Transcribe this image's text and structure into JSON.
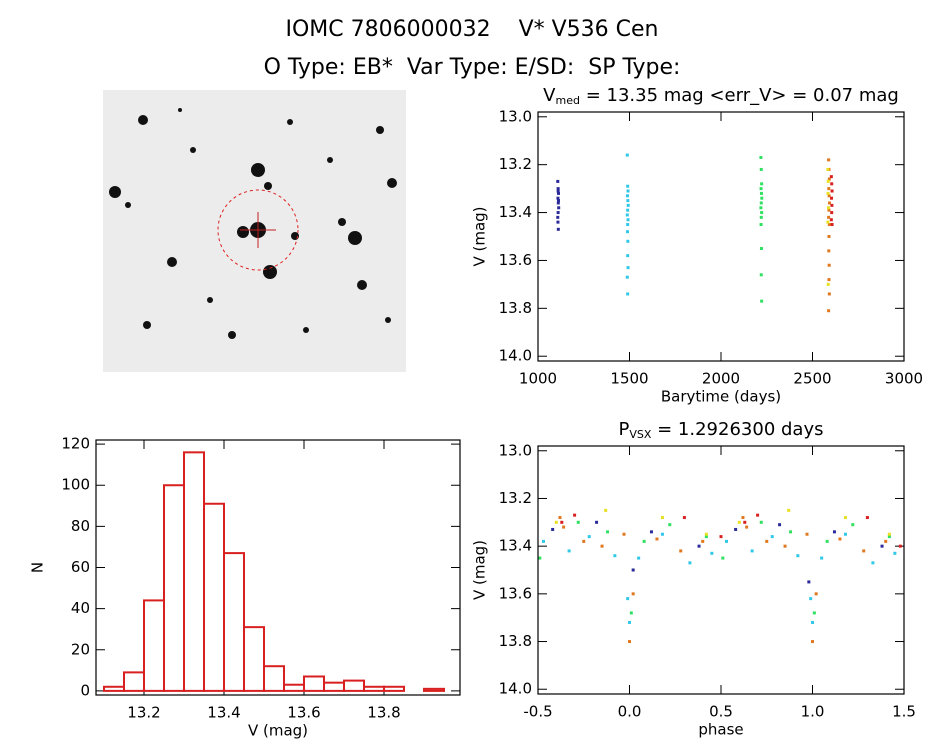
{
  "header": {
    "title": "IOMC 7806000032    V* V536 Cen",
    "subtitle": "O Type: EB*  Var Type: E/SD:  SP Type:"
  },
  "chart_data": [
    {
      "type": "scatter",
      "title": "V",
      "title_sub": "med",
      "title_rest": " = 13.35 mag <err_V> = 0.07 mag",
      "x_label": "Barytime (days)",
      "y_label": "V (mag)",
      "xlim": [
        1000,
        3000
      ],
      "xticks": [
        1000,
        1500,
        2000,
        2500,
        3000
      ],
      "ylim": [
        14.02,
        12.98
      ],
      "yticks": [
        {
          "value": 13,
          "label": "13.0"
        },
        13.2,
        13.4,
        13.6,
        13.8,
        {
          "value": 14,
          "label": "14.0"
        }
      ],
      "series": [
        {
          "color": "#2a2a9a",
          "x": [
            1108,
            1110,
            1112,
            1109,
            1111,
            1113,
            1110,
            1108,
            1112,
            1110,
            1109,
            1111
          ],
          "values": [
            13.27,
            13.3,
            13.32,
            13.34,
            13.36,
            13.38,
            13.4,
            13.42,
            13.35,
            13.31,
            13.44,
            13.47
          ]
        },
        {
          "color": "#30c8e8",
          "x": [
            1488,
            1490,
            1492,
            1489,
            1491,
            1493,
            1490,
            1488,
            1492,
            1490,
            1489,
            1491,
            1490,
            1492,
            1488,
            1490
          ],
          "values": [
            13.16,
            13.29,
            13.31,
            13.33,
            13.35,
            13.37,
            13.39,
            13.41,
            13.43,
            13.45,
            13.48,
            13.52,
            13.58,
            13.63,
            13.67,
            13.74
          ]
        },
        {
          "color": "#30e060",
          "x": [
            2218,
            2220,
            2222,
            2219,
            2221,
            2223,
            2220,
            2218,
            2222,
            2220,
            2219,
            2221,
            2220,
            2222
          ],
          "values": [
            13.17,
            13.22,
            13.28,
            13.3,
            13.32,
            13.34,
            13.36,
            13.38,
            13.4,
            13.42,
            13.45,
            13.55,
            13.66,
            13.77
          ]
        },
        {
          "color": "#e07820",
          "x": [
            2588,
            2590,
            2592,
            2589,
            2591,
            2593,
            2590,
            2588,
            2592,
            2590,
            2589,
            2591,
            2590,
            2592,
            2588
          ],
          "values": [
            13.18,
            13.22,
            13.26,
            13.3,
            13.33,
            13.36,
            13.39,
            13.42,
            13.45,
            13.5,
            13.56,
            13.62,
            13.68,
            13.74,
            13.81
          ]
        },
        {
          "color": "#d82020",
          "x": [
            2603,
            2605,
            2607,
            2604,
            2606,
            2605,
            2603,
            2607
          ],
          "values": [
            13.25,
            13.28,
            13.31,
            13.34,
            13.37,
            13.4,
            13.43,
            13.45
          ]
        },
        {
          "color": "#e8e020",
          "x": [
            2584,
            2586,
            2585,
            2587,
            2584,
            2586
          ],
          "values": [
            13.22,
            13.27,
            13.32,
            13.38,
            13.44,
            13.7
          ]
        }
      ]
    },
    {
      "type": "histogram",
      "x_label": "V (mag)",
      "y_label": "N",
      "color": "#d82020",
      "bins": [
        13.1,
        13.15,
        13.2,
        13.25,
        13.3,
        13.35,
        13.4,
        13.45,
        13.5,
        13.55,
        13.6,
        13.65,
        13.7,
        13.75,
        13.8,
        13.85,
        13.9,
        13.95
      ],
      "values": [
        2,
        9,
        44,
        100,
        116,
        91,
        67,
        31,
        12,
        3,
        7,
        4,
        5,
        2,
        2,
        0,
        1
      ],
      "xlim": [
        13.08,
        13.99
      ],
      "xticks": [
        13.2,
        13.4,
        13.6,
        13.8
      ],
      "ylim": [
        -2,
        122
      ],
      "yticks": [
        0,
        20,
        40,
        60,
        80,
        100,
        120
      ]
    },
    {
      "type": "scatter",
      "title": "P",
      "title_sub": "VSX",
      "title_rest": " = 1.2926300 days",
      "x_label": "phase",
      "y_label": "V (mag)",
      "xlim": [
        -0.5,
        1.5
      ],
      "xticks": [
        -0.5,
        {
          "value": 0,
          "label": "0.0"
        },
        0.5,
        {
          "value": 1,
          "label": "1.0"
        },
        1.5
      ],
      "ylim": [
        14.02,
        12.98
      ],
      "yticks": [
        {
          "value": 13,
          "label": "13.0"
        },
        13.2,
        13.4,
        13.6,
        13.8,
        {
          "value": 14,
          "label": "14.0"
        }
      ],
      "series": [
        {
          "color": "#2a2a9a",
          "x": [
            -0.42,
            -0.18,
            0.02,
            0.12,
            0.38,
            0.58,
            0.82,
            0.98,
            1.12,
            1.38
          ],
          "values": [
            13.33,
            13.3,
            13.5,
            13.34,
            13.4,
            13.33,
            13.31,
            13.55,
            13.34,
            13.4
          ]
        },
        {
          "color": "#30c8e8",
          "x": [
            -0.47,
            -0.33,
            -0.22,
            -0.08,
            -0.01,
            0.0,
            0.05,
            0.18,
            0.33,
            0.45,
            0.53,
            0.67,
            0.78,
            0.92,
            0.99,
            1.0,
            1.05,
            1.18,
            1.33,
            1.45
          ],
          "values": [
            13.38,
            13.42,
            13.36,
            13.44,
            13.62,
            13.72,
            13.45,
            13.35,
            13.47,
            13.43,
            13.38,
            13.42,
            13.36,
            13.44,
            13.62,
            13.72,
            13.45,
            13.35,
            13.47,
            13.43
          ]
        },
        {
          "color": "#30e060",
          "x": [
            -0.49,
            -0.28,
            -0.12,
            0.01,
            0.08,
            0.22,
            0.42,
            0.51,
            0.72,
            0.88,
            1.01,
            1.08,
            1.22,
            1.42
          ],
          "values": [
            13.45,
            13.3,
            13.34,
            13.68,
            13.38,
            13.31,
            13.36,
            13.45,
            13.3,
            13.34,
            13.68,
            13.38,
            13.31,
            13.36
          ]
        },
        {
          "color": "#e07820",
          "x": [
            -0.38,
            -0.36,
            -0.25,
            -0.15,
            -0.03,
            0.0,
            0.02,
            0.15,
            0.28,
            0.4,
            0.62,
            0.64,
            0.75,
            0.85,
            0.97,
            1.0,
            1.02,
            1.15,
            1.28,
            1.4
          ],
          "values": [
            13.28,
            13.32,
            13.38,
            13.4,
            13.35,
            13.8,
            13.6,
            13.37,
            13.42,
            13.38,
            13.28,
            13.32,
            13.38,
            13.4,
            13.35,
            13.8,
            13.6,
            13.37,
            13.42,
            13.38
          ]
        },
        {
          "color": "#d82020",
          "x": [
            -0.37,
            -0.3,
            0.3,
            0.5,
            0.63,
            0.7,
            1.3,
            1.48
          ],
          "values": [
            13.3,
            13.27,
            13.28,
            13.36,
            13.3,
            13.27,
            13.28,
            13.4
          ]
        },
        {
          "color": "#e8e020",
          "x": [
            -0.4,
            -0.13,
            0.18,
            0.42,
            0.6,
            0.87,
            1.18,
            1.42
          ],
          "values": [
            13.3,
            13.25,
            13.28,
            13.35,
            13.3,
            13.25,
            13.28,
            13.35
          ]
        }
      ]
    }
  ]
}
